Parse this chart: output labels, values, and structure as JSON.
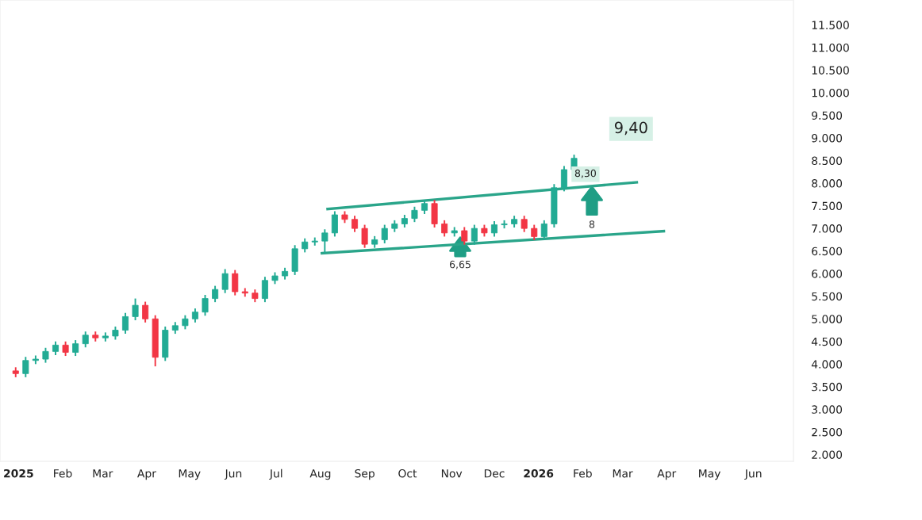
{
  "chart_data": {
    "type": "candlestick",
    "x": [
      "2024-12-30",
      "2025-01-06",
      "2025-01-13",
      "2025-01-20",
      "2025-01-27",
      "2025-02-03",
      "2025-02-10",
      "2025-02-17",
      "2025-02-24",
      "2025-03-03",
      "2025-03-10",
      "2025-03-17",
      "2025-03-24",
      "2025-03-31",
      "2025-04-07",
      "2025-04-14",
      "2025-04-21",
      "2025-04-28",
      "2025-05-05",
      "2025-05-12",
      "2025-05-19",
      "2025-05-26",
      "2025-06-02",
      "2025-06-09",
      "2025-06-16",
      "2025-06-23",
      "2025-06-30",
      "2025-07-07",
      "2025-07-14",
      "2025-07-21",
      "2025-07-28",
      "2025-08-04",
      "2025-08-11",
      "2025-08-18",
      "2025-08-25",
      "2025-09-01",
      "2025-09-08",
      "2025-09-15",
      "2025-09-22",
      "2025-09-29",
      "2025-10-06",
      "2025-10-13",
      "2025-10-20",
      "2025-10-27",
      "2025-11-03",
      "2025-11-10",
      "2025-11-17",
      "2025-11-24",
      "2025-12-01",
      "2025-12-08",
      "2025-12-15",
      "2025-12-22",
      "2025-12-29",
      "2026-01-05",
      "2026-01-12",
      "2026-01-19",
      "2026-01-26"
    ],
    "ohlc": [
      [
        3850,
        3930,
        3710,
        3790
      ],
      [
        3790,
        4160,
        3710,
        4080
      ],
      [
        4080,
        4190,
        4000,
        4110
      ],
      [
        4110,
        4360,
        4030,
        4280
      ],
      [
        4280,
        4500,
        4200,
        4420
      ],
      [
        4420,
        4500,
        4180,
        4260
      ],
      [
        4260,
        4530,
        4180,
        4450
      ],
      [
        4450,
        4720,
        4370,
        4640
      ],
      [
        4640,
        4720,
        4500,
        4580
      ],
      [
        4580,
        4700,
        4500,
        4620
      ],
      [
        4620,
        4830,
        4540,
        4750
      ],
      [
        4750,
        5130,
        4670,
        5050
      ],
      [
        5050,
        5450,
        4970,
        5300
      ],
      [
        5300,
        5380,
        4920,
        5000
      ],
      [
        5000,
        5080,
        3950,
        4150
      ],
      [
        4150,
        4830,
        4070,
        4750
      ],
      [
        4750,
        4930,
        4670,
        4850
      ],
      [
        4850,
        5080,
        4770,
        5000
      ],
      [
        5000,
        5230,
        4920,
        5150
      ],
      [
        5150,
        5530,
        5070,
        5450
      ],
      [
        5450,
        5730,
        5370,
        5650
      ],
      [
        5650,
        6100,
        5570,
        6000
      ],
      [
        6000,
        6080,
        5520,
        5600
      ],
      [
        5600,
        5680,
        5490,
        5570
      ],
      [
        5570,
        5650,
        5370,
        5450
      ],
      [
        5450,
        5930,
        5370,
        5850
      ],
      [
        5850,
        6030,
        5770,
        5950
      ],
      [
        5950,
        6130,
        5870,
        6050
      ],
      [
        6050,
        6630,
        5970,
        6550
      ],
      [
        6550,
        6780,
        6470,
        6700
      ],
      [
        6700,
        6800,
        6620,
        6720
      ],
      [
        6720,
        6980,
        6450,
        6900
      ],
      [
        6900,
        7380,
        6820,
        7300
      ],
      [
        7300,
        7380,
        7120,
        7200
      ],
      [
        7200,
        7280,
        6920,
        7000
      ],
      [
        7000,
        7080,
        6570,
        6650
      ],
      [
        6650,
        6830,
        6570,
        6750
      ],
      [
        6750,
        7080,
        6670,
        7000
      ],
      [
        7000,
        7180,
        6920,
        7100
      ],
      [
        7100,
        7300,
        7020,
        7220
      ],
      [
        7220,
        7480,
        7140,
        7400
      ],
      [
        7400,
        7630,
        7320,
        7550
      ],
      [
        7550,
        7630,
        7020,
        7100
      ],
      [
        7100,
        7180,
        6820,
        6900
      ],
      [
        6900,
        7030,
        6820,
        6950
      ],
      [
        6950,
        7030,
        6640,
        6720
      ],
      [
        6720,
        7080,
        6640,
        7000
      ],
      [
        7000,
        7080,
        6820,
        6900
      ],
      [
        6900,
        7160,
        6820,
        7080
      ],
      [
        7080,
        7180,
        7000,
        7100
      ],
      [
        7100,
        7280,
        7020,
        7200
      ],
      [
        7200,
        7280,
        6920,
        7000
      ],
      [
        7000,
        7080,
        6740,
        6820
      ],
      [
        6820,
        7180,
        6740,
        7100
      ],
      [
        7100,
        7980,
        7020,
        7900
      ],
      [
        7900,
        8380,
        7820,
        8300
      ],
      [
        8300,
        8630,
        8220,
        8550
      ]
    ],
    "colors": [
      "#f23645",
      "#22ab94",
      "#22ab94",
      "#22ab94",
      "#22ab94",
      "#f23645",
      "#22ab94",
      "#22ab94",
      "#f23645",
      "#22ab94",
      "#22ab94",
      "#22ab94",
      "#22ab94",
      "#f23645",
      "#f23645",
      "#22ab94",
      "#22ab94",
      "#22ab94",
      "#22ab94",
      "#22ab94",
      "#22ab94",
      "#22ab94",
      "#f23645",
      "#f23645",
      "#f23645",
      "#22ab94",
      "#22ab94",
      "#22ab94",
      "#22ab94",
      "#22ab94",
      "#22ab94",
      "#22ab94",
      "#22ab94",
      "#f23645",
      "#f23645",
      "#f23645",
      "#22ab94",
      "#22ab94",
      "#22ab94",
      "#22ab94",
      "#22ab94",
      "#22ab94",
      "#f23645",
      "#f23645",
      "#22ab94",
      "#f23645",
      "#22ab94",
      "#f23645",
      "#22ab94",
      "#22ab94",
      "#22ab94",
      "#f23645",
      "#f23645",
      "#22ab94",
      "#22ab94",
      "#22ab94",
      "#22ab94"
    ],
    "series": [
      {
        "type": "line",
        "color": "#2aa58a",
        "x": [
          "2025-08-06",
          "2026-03-11"
        ],
        "values": [
          7430,
          8020
        ]
      },
      {
        "type": "line",
        "color": "#2aa58a",
        "x": [
          "2025-08-02",
          "2026-03-30"
        ],
        "values": [
          6450,
          6940
        ]
      }
    ],
    "annotations": [
      {
        "text": "9,40",
        "x": "2026-03-07",
        "y": 9200
      },
      {
        "text": "8,30",
        "x": "2026-02-03",
        "y": 8200
      },
      "6,65",
      "8"
    ],
    "xlim": [
      "2024-12-19",
      "2026-06-29"
    ],
    "xticks": [
      {
        "value": "2025-01-01",
        "label": "2025"
      },
      {
        "value": "2025-02-01",
        "label": "Feb"
      },
      {
        "value": "2025-03-01",
        "label": "Mar"
      },
      {
        "value": "2025-04-01",
        "label": "Apr"
      },
      {
        "value": "2025-05-01",
        "label": "May"
      },
      {
        "value": "2025-06-01",
        "label": "Jun"
      },
      {
        "value": "2025-07-01",
        "label": "Jul"
      },
      {
        "value": "2025-08-01",
        "label": "Aug"
      },
      {
        "value": "2025-09-01",
        "label": "Sep"
      },
      {
        "value": "2025-10-01",
        "label": "Oct"
      },
      {
        "value": "2025-11-01",
        "label": "Nov"
      },
      {
        "value": "2025-12-01",
        "label": "Dec"
      },
      {
        "value": "2026-01-01",
        "label": "2026"
      },
      {
        "value": "2026-02-01",
        "label": "Feb"
      },
      {
        "value": "2026-03-01",
        "label": "Mar"
      },
      {
        "value": "2026-04-01",
        "label": "Apr"
      },
      {
        "value": "2026-05-01",
        "label": "May"
      },
      {
        "value": "2026-06-01",
        "label": "Jun"
      }
    ],
    "ylim": [
      1850,
      12050
    ],
    "yticks": [
      {
        "value": 2000,
        "label": "2.000"
      },
      {
        "value": 2500,
        "label": "2.500"
      },
      {
        "value": 3000,
        "label": "3.000"
      },
      {
        "value": 3500,
        "label": "3.500"
      },
      {
        "value": 4000,
        "label": "4.000"
      },
      {
        "value": 4500,
        "label": "4.500"
      },
      {
        "value": 5000,
        "label": "5.000"
      },
      {
        "value": 5500,
        "label": "5.500"
      },
      {
        "value": 6000,
        "label": "6.000"
      },
      {
        "value": 6500,
        "label": "6.500"
      },
      {
        "value": 7000,
        "label": "7.000"
      },
      {
        "value": 7500,
        "label": "7.500"
      },
      {
        "value": 8000,
        "label": "8.000"
      },
      {
        "value": 8500,
        "label": "8.500"
      },
      {
        "value": 9000,
        "label": "9.000"
      },
      {
        "value": 9500,
        "label": "9.500"
      },
      {
        "value": 10000,
        "label": "10.000"
      },
      {
        "value": 10500,
        "label": "10.500"
      },
      {
        "value": 11000,
        "label": "11.000"
      },
      {
        "value": 11500,
        "label": "11.500"
      }
    ]
  }
}
